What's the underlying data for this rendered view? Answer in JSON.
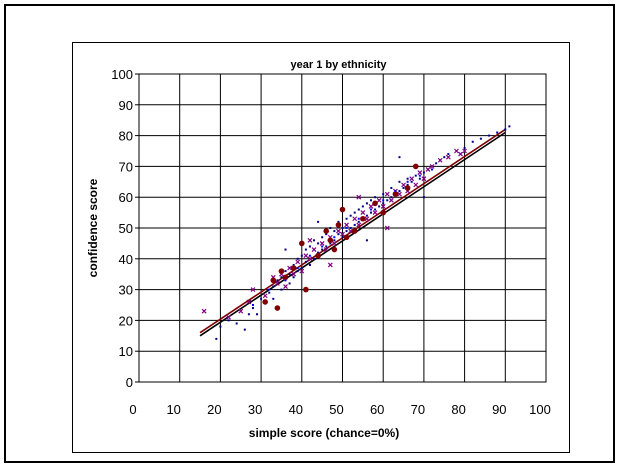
{
  "chart_data": {
    "type": "scatter",
    "title": "year 1 by ethnicity",
    "xlabel": "simple score (chance=0%)",
    "ylabel": "confidence score",
    "xlim": [
      0,
      100
    ],
    "ylim": [
      0,
      100
    ],
    "x_ticks": [
      "0",
      "10",
      "20",
      "30",
      "40",
      "50",
      "60",
      "70",
      "80",
      "90",
      "100"
    ],
    "y_ticks": [
      "0",
      "10",
      "20",
      "30",
      "40",
      "50",
      "60",
      "70",
      "80",
      "90",
      "100"
    ],
    "grid": true,
    "legend": "none",
    "series": [
      {
        "marker": "dot",
        "color": "#000080",
        "points": [
          [
            19,
            14
          ],
          [
            20,
            18
          ],
          [
            22,
            20
          ],
          [
            24,
            19
          ],
          [
            26,
            17
          ],
          [
            27,
            22
          ],
          [
            28,
            24
          ],
          [
            29,
            22
          ],
          [
            30,
            27
          ],
          [
            31,
            26
          ],
          [
            32,
            29
          ],
          [
            33,
            31
          ],
          [
            33,
            27
          ],
          [
            34,
            33
          ],
          [
            35,
            30
          ],
          [
            35,
            34
          ],
          [
            36,
            36
          ],
          [
            37,
            32
          ],
          [
            37,
            35
          ],
          [
            38,
            38
          ],
          [
            38,
            34
          ],
          [
            39,
            36
          ],
          [
            39,
            40
          ],
          [
            40,
            37
          ],
          [
            40,
            41
          ],
          [
            41,
            39
          ],
          [
            41,
            43
          ],
          [
            42,
            38
          ],
          [
            42,
            44
          ],
          [
            43,
            40
          ],
          [
            43,
            46
          ],
          [
            44,
            42
          ],
          [
            44,
            45
          ],
          [
            45,
            43
          ],
          [
            45,
            47
          ],
          [
            46,
            44
          ],
          [
            46,
            48
          ],
          [
            47,
            45
          ],
          [
            47,
            50
          ],
          [
            48,
            46
          ],
          [
            48,
            49
          ],
          [
            49,
            48
          ],
          [
            49,
            52
          ],
          [
            50,
            47
          ],
          [
            50,
            50
          ],
          [
            51,
            49
          ],
          [
            51,
            53
          ],
          [
            52,
            50
          ],
          [
            52,
            54
          ],
          [
            53,
            51
          ],
          [
            53,
            55
          ],
          [
            54,
            52
          ],
          [
            54,
            56
          ],
          [
            55,
            53
          ],
          [
            55,
            57
          ],
          [
            56,
            54
          ],
          [
            56,
            58
          ],
          [
            57,
            55
          ],
          [
            57,
            59
          ],
          [
            58,
            56
          ],
          [
            58,
            60
          ],
          [
            59,
            57
          ],
          [
            60,
            58
          ],
          [
            60,
            61
          ],
          [
            61,
            59
          ],
          [
            62,
            60
          ],
          [
            62,
            63
          ],
          [
            63,
            61
          ],
          [
            64,
            62
          ],
          [
            64,
            65
          ],
          [
            65,
            63
          ],
          [
            66,
            64
          ],
          [
            66,
            66
          ],
          [
            67,
            65
          ],
          [
            68,
            67
          ],
          [
            69,
            66
          ],
          [
            70,
            68
          ],
          [
            71,
            69
          ],
          [
            72,
            70
          ],
          [
            73,
            71
          ],
          [
            74,
            72
          ],
          [
            75,
            73
          ],
          [
            76,
            74
          ],
          [
            78,
            75
          ],
          [
            80,
            76
          ],
          [
            82,
            78
          ],
          [
            84,
            79
          ],
          [
            86,
            80
          ],
          [
            88,
            81
          ],
          [
            90,
            82
          ],
          [
            91,
            83
          ],
          [
            64,
            73
          ],
          [
            70,
            60
          ],
          [
            56,
            46
          ],
          [
            44,
            52
          ],
          [
            36,
            43
          ]
        ]
      },
      {
        "marker": "x",
        "color": "#800080",
        "points": [
          [
            16,
            23
          ],
          [
            22,
            21
          ],
          [
            25,
            23
          ],
          [
            27,
            26
          ],
          [
            28,
            30
          ],
          [
            31,
            28
          ],
          [
            33,
            34
          ],
          [
            34,
            32
          ],
          [
            35,
            35
          ],
          [
            36,
            31
          ],
          [
            37,
            37
          ],
          [
            38,
            35
          ],
          [
            39,
            39
          ],
          [
            40,
            36
          ],
          [
            41,
            41
          ],
          [
            42,
            40
          ],
          [
            43,
            43
          ],
          [
            44,
            41
          ],
          [
            45,
            45
          ],
          [
            46,
            43
          ],
          [
            47,
            47
          ],
          [
            48,
            45
          ],
          [
            49,
            49
          ],
          [
            50,
            48
          ],
          [
            51,
            51
          ],
          [
            52,
            49
          ],
          [
            53,
            53
          ],
          [
            54,
            51
          ],
          [
            55,
            55
          ],
          [
            56,
            53
          ],
          [
            57,
            57
          ],
          [
            58,
            55
          ],
          [
            59,
            59
          ],
          [
            60,
            57
          ],
          [
            61,
            61
          ],
          [
            62,
            59
          ],
          [
            63,
            62
          ],
          [
            64,
            61
          ],
          [
            65,
            64
          ],
          [
            66,
            62
          ],
          [
            67,
            66
          ],
          [
            68,
            64
          ],
          [
            69,
            68
          ],
          [
            70,
            66
          ],
          [
            71,
            69
          ],
          [
            72,
            70
          ],
          [
            74,
            72
          ],
          [
            76,
            73
          ],
          [
            78,
            75
          ],
          [
            79,
            74
          ],
          [
            80,
            75
          ],
          [
            61,
            50
          ],
          [
            47,
            38
          ],
          [
            42,
            46
          ],
          [
            54,
            60
          ]
        ]
      },
      {
        "marker": "circle",
        "color": "#800000",
        "points": [
          [
            31,
            26
          ],
          [
            33,
            33
          ],
          [
            34,
            24
          ],
          [
            35,
            36
          ],
          [
            36,
            34
          ],
          [
            38,
            37
          ],
          [
            40,
            45
          ],
          [
            41,
            30
          ],
          [
            44,
            41
          ],
          [
            46,
            49
          ],
          [
            47,
            46
          ],
          [
            48,
            43
          ],
          [
            49,
            51
          ],
          [
            50,
            56
          ],
          [
            51,
            47
          ],
          [
            53,
            49
          ],
          [
            55,
            53
          ],
          [
            58,
            58
          ],
          [
            60,
            55
          ],
          [
            63,
            61
          ],
          [
            66,
            63
          ],
          [
            68,
            70
          ]
        ]
      },
      {
        "marker": "dot",
        "color": "#0000ff",
        "points": [
          [
            28,
            25
          ],
          [
            32,
            30
          ],
          [
            36,
            33
          ],
          [
            39,
            37
          ],
          [
            42,
            41
          ],
          [
            45,
            44
          ],
          [
            48,
            47
          ],
          [
            51,
            50
          ],
          [
            54,
            53
          ],
          [
            57,
            56
          ],
          [
            60,
            59
          ],
          [
            63,
            62
          ],
          [
            66,
            65
          ],
          [
            69,
            67
          ],
          [
            72,
            69
          ]
        ]
      }
    ],
    "trendlines": [
      {
        "color": "#000000",
        "from": [
          15,
          15
        ],
        "to": [
          90,
          81
        ]
      },
      {
        "color": "#800000",
        "from": [
          15,
          16
        ],
        "to": [
          90,
          82
        ]
      }
    ]
  }
}
